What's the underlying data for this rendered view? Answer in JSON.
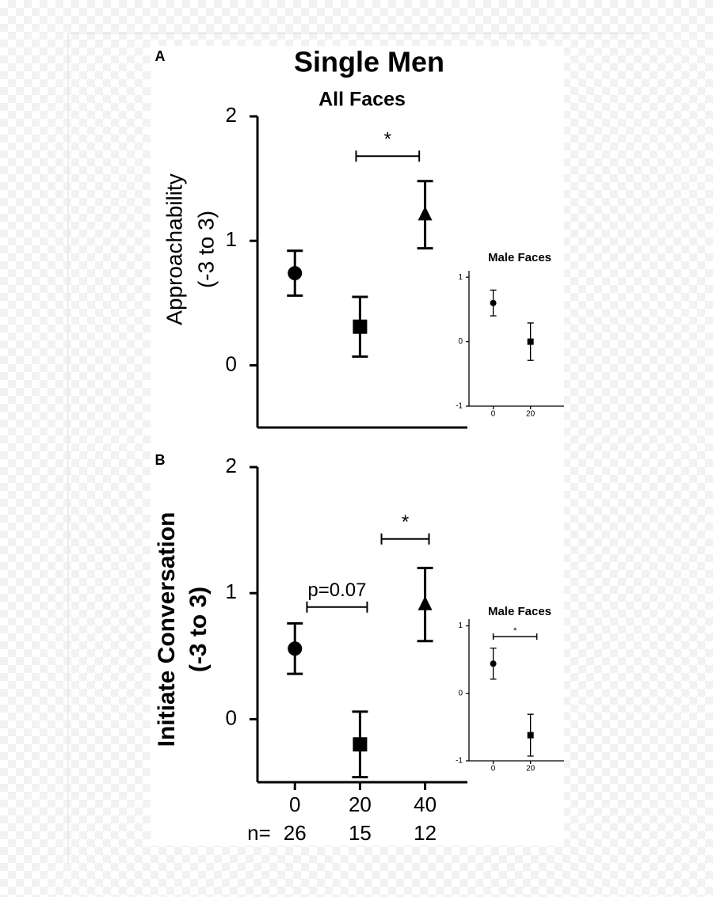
{
  "chart_data": [
    {
      "type": "scatter",
      "panel": "A",
      "title": "Single Men",
      "subtitle": "All Faces",
      "ylabel": [
        "Approachability",
        "(-3 to 3)"
      ],
      "x": [
        0,
        20,
        40
      ],
      "values": [
        0.74,
        0.31,
        1.21
      ],
      "errors": [
        0.18,
        0.24,
        0.27
      ],
      "markers": [
        "circle",
        "square",
        "triangle"
      ],
      "color": "#000000",
      "xlim": [
        -11.5,
        53
      ],
      "ylim": [
        -0.5,
        2
      ],
      "yticks": [
        0,
        1,
        2
      ],
      "annotations": [
        "*"
      ]
    },
    {
      "type": "scatter",
      "title": "Male Faces",
      "x": [
        0,
        20
      ],
      "values": [
        0.6,
        0.0
      ],
      "errors": [
        0.2,
        0.29
      ],
      "markers": [
        "circle",
        "square"
      ],
      "color": "#000000",
      "xlim": [
        -13,
        38
      ],
      "xticks": [
        0,
        20
      ],
      "ylim": [
        -1,
        1.1
      ],
      "yticks": [
        -1,
        0,
        1
      ],
      "annotations": []
    },
    {
      "type": "scatter",
      "panel": "B",
      "ylabel": [
        "Initiate Conversation",
        "(-3 to 3)"
      ],
      "x": [
        0,
        20,
        40
      ],
      "values": [
        0.56,
        -0.2,
        0.91
      ],
      "errors": [
        0.2,
        0.26,
        0.29
      ],
      "markers": [
        "circle",
        "square",
        "triangle"
      ],
      "color": "#000000",
      "xlim": [
        -11.5,
        53
      ],
      "xticks": [
        0,
        20,
        40
      ],
      "ylim": [
        -0.5,
        2
      ],
      "yticks": [
        0,
        1,
        2
      ],
      "n_label": "n=",
      "n": [
        26,
        15,
        12
      ],
      "annotations": [
        "p=0.07",
        "*"
      ]
    },
    {
      "type": "scatter",
      "title": "Male Faces",
      "x": [
        0,
        20
      ],
      "values": [
        0.44,
        -0.62
      ],
      "errors": [
        0.23,
        0.31
      ],
      "markers": [
        "circle",
        "square"
      ],
      "color": "#000000",
      "xlim": [
        -13,
        38
      ],
      "xticks": [
        0,
        20
      ],
      "ylim": [
        -1,
        1.1
      ],
      "yticks": [
        -1,
        0,
        1
      ],
      "annotations": [
        "*"
      ]
    }
  ]
}
